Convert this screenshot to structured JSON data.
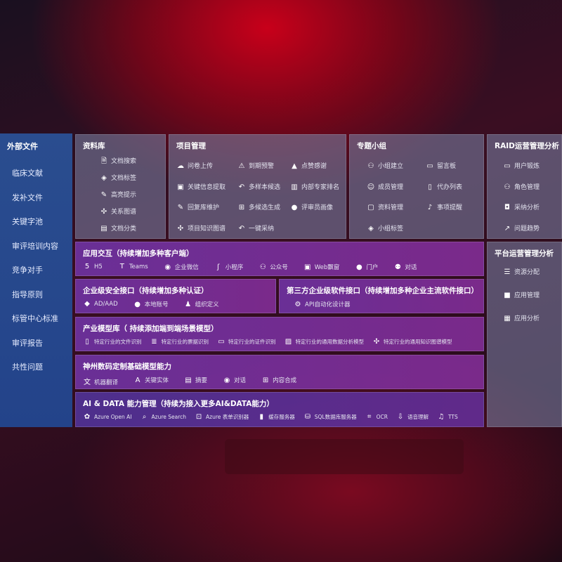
{
  "sidebar": {
    "title": "外部文件",
    "items": [
      "临床文献",
      "发补文件",
      "关键字池",
      "审评培训内容",
      "竞争对手",
      "指导原则",
      "标管中心标准",
      "审评报告",
      "共性问题"
    ]
  },
  "library": {
    "title": "资料库",
    "items": [
      {
        "icon": "doc-search-icon",
        "label": "文档搜索"
      },
      {
        "icon": "tag-icon",
        "label": "文档标签"
      },
      {
        "icon": "pen-icon",
        "label": "高亮提示"
      },
      {
        "icon": "graph-icon",
        "label": "关系图谱"
      },
      {
        "icon": "docs-icon",
        "label": "文档分类"
      }
    ]
  },
  "project": {
    "title": "项目管理",
    "items": [
      {
        "icon": "cloud-upload-icon",
        "label": "问卷上传"
      },
      {
        "icon": "alarm-icon",
        "label": "到期预警"
      },
      {
        "icon": "thumbs-up-icon",
        "label": "点赞感谢"
      },
      {
        "icon": "window-icon",
        "label": "关键信息提取"
      },
      {
        "icon": "reply-icon",
        "label": "多样本候选"
      },
      {
        "icon": "rank-icon",
        "label": "内部专家排名"
      },
      {
        "icon": "edit-icon",
        "label": "回复库维护"
      },
      {
        "icon": "puzzle-icon",
        "label": "多候选生成"
      },
      {
        "icon": "user-icon",
        "label": "评审员画像"
      },
      {
        "icon": "graph-icon",
        "label": "项目知识图谱"
      },
      {
        "icon": "reply-icon",
        "label": "一键采纳"
      }
    ]
  },
  "group": {
    "title": "专题小组",
    "items": [
      {
        "icon": "users-icon",
        "label": "小组建立"
      },
      {
        "icon": "bbs-icon",
        "label": "留言板"
      },
      {
        "icon": "user-add-icon",
        "label": "成员管理"
      },
      {
        "icon": "clipboard-icon",
        "label": "代办列表"
      },
      {
        "icon": "folder-icon",
        "label": "资料管理"
      },
      {
        "icon": "bell-icon",
        "label": "事项提醒"
      },
      {
        "icon": "tag-icon",
        "label": "小组标签"
      }
    ]
  },
  "raid": {
    "title": "RAID运营管理分析",
    "items": [
      {
        "icon": "id-card-icon",
        "label": "用户锻炼"
      },
      {
        "icon": "users-icon",
        "label": "角色管理"
      },
      {
        "icon": "qa-icon",
        "label": "采纳分析"
      },
      {
        "icon": "trend-icon",
        "label": "问题趋势"
      }
    ]
  },
  "platform": {
    "title": "平台运营管理分析",
    "items": [
      {
        "icon": "list-icon",
        "label": "资源分配"
      },
      {
        "icon": "apps-icon",
        "label": "应用管理"
      },
      {
        "icon": "chart-icon",
        "label": "应用分析"
      }
    ]
  },
  "app": {
    "title": "应用交互（持续增加多种客户端）",
    "items": [
      {
        "icon": "html5-icon",
        "label": "H5"
      },
      {
        "icon": "teams-icon",
        "label": "Teams"
      },
      {
        "icon": "chat-icon",
        "label": "企业微信"
      },
      {
        "icon": "miniprogram-icon",
        "label": "小程序"
      },
      {
        "icon": "users-icon",
        "label": "公众号"
      },
      {
        "icon": "window-icon",
        "label": "Web飘窗"
      },
      {
        "icon": "user-icon",
        "label": "门户"
      },
      {
        "icon": "dialog-icon",
        "label": "对话"
      }
    ]
  },
  "security": {
    "title": "企业级安全接口（持续增加多种认证）",
    "items": [
      {
        "icon": "diamond-icon",
        "label": "AD/AAD"
      },
      {
        "icon": "user-icon",
        "label": "本地账号"
      },
      {
        "icon": "org-icon",
        "label": "组织定义"
      }
    ]
  },
  "thirdparty": {
    "title": "第三方企业级软件接口（持续增加多种企业主流软件接口）",
    "items": [
      {
        "icon": "gear-icon",
        "label": "API自动化设计器"
      }
    ]
  },
  "industry": {
    "title": "产业模型库（ 持续添加端到端场景模型）",
    "items": [
      {
        "icon": "file-icon",
        "label": "特定行业的文件识别"
      },
      {
        "icon": "receipt-icon",
        "label": "特定行业的票据识别"
      },
      {
        "icon": "id-card-icon",
        "label": "特定行业的证件识别"
      },
      {
        "icon": "image-icon",
        "label": "特定行业的通用数据分析模型"
      },
      {
        "icon": "graph-icon",
        "label": "特定行业的通用知识图谱模型"
      }
    ]
  },
  "base": {
    "title": "神州数码定制基础模型能力",
    "items": [
      {
        "icon": "translate-icon",
        "label": "机器翻译"
      },
      {
        "icon": "entity-icon",
        "label": "关键实体"
      },
      {
        "icon": "summary-icon",
        "label": "摘要"
      },
      {
        "icon": "chat-icon",
        "label": "对话"
      },
      {
        "icon": "puzzle-icon",
        "label": "内容合成"
      }
    ]
  },
  "ai": {
    "title": "AI & DATA 能力管理（持续为接入更多AI&DATA能力）",
    "items": [
      {
        "icon": "openai-icon",
        "label": "Azure Open AI"
      },
      {
        "icon": "search-icon",
        "label": "Azure Search"
      },
      {
        "icon": "form-icon",
        "label": "Azure 表单识别器"
      },
      {
        "icon": "cache-icon",
        "label": "缓存服务器"
      },
      {
        "icon": "database-icon",
        "label": "SQL数据库服务器"
      },
      {
        "icon": "ocr-icon",
        "label": "OCR"
      },
      {
        "icon": "speech-icon",
        "label": "语音理解"
      },
      {
        "icon": "tts-icon",
        "label": "TTS"
      }
    ]
  }
}
